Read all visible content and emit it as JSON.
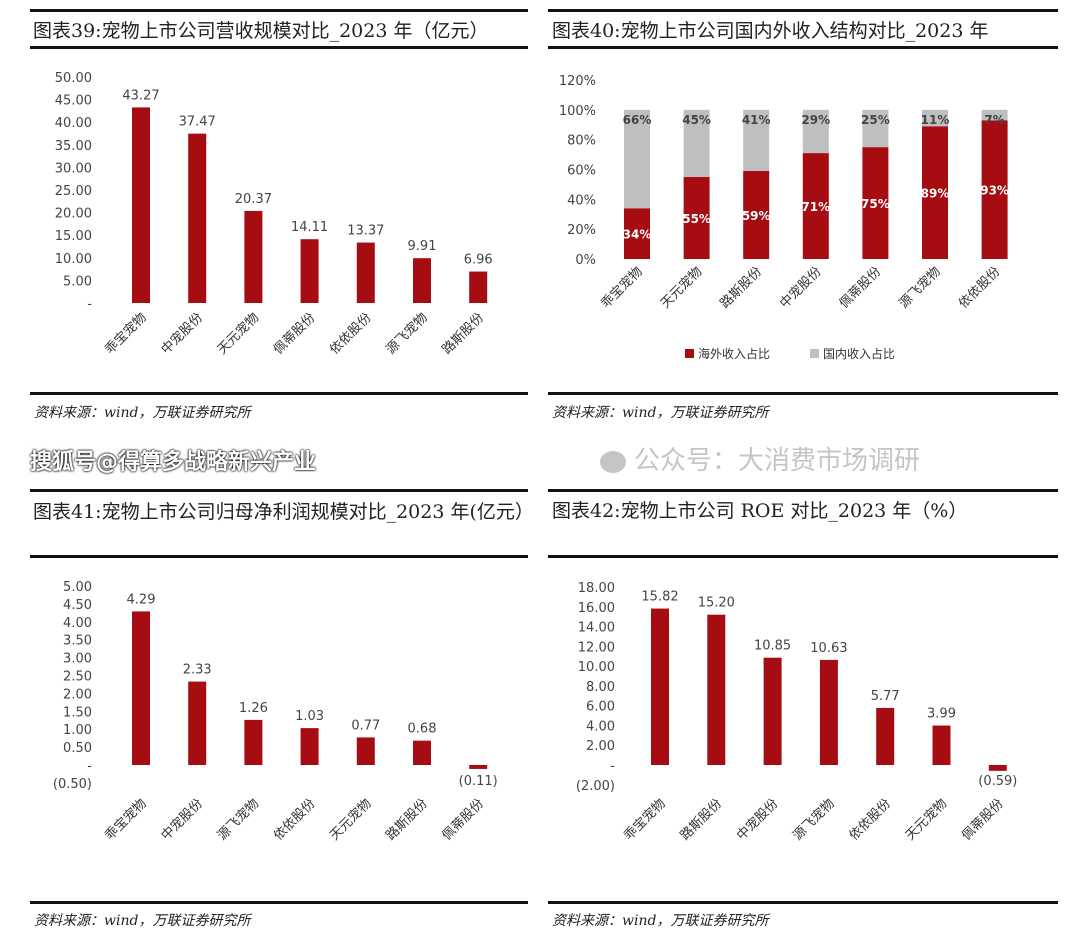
{
  "watermark": "搜狐号@得算多战略新兴产业",
  "watermark2": "公众号：大消费市场调研",
  "chart_data": [
    {
      "type": "bar",
      "title": "图表39:宠物上市公司营收规模对比_2023 年（亿元）",
      "categories": [
        "乖宝宠物",
        "中宠股份",
        "天元宠物",
        "佩蒂股份",
        "依依股份",
        "源飞宠物",
        "路斯股份"
      ],
      "values": [
        43.27,
        37.47,
        20.37,
        14.11,
        13.37,
        9.91,
        6.96
      ],
      "data_labels": [
        "43.27",
        "37.47",
        "20.37",
        "14.11",
        "13.37",
        "9.91",
        "6.96"
      ],
      "yticks": [
        0,
        5,
        10,
        15,
        20,
        25,
        30,
        35,
        40,
        45,
        50
      ],
      "ytick_labels": [
        "-",
        "5.00",
        "10.00",
        "15.00",
        "20.00",
        "25.00",
        "30.00",
        "35.00",
        "40.00",
        "45.00",
        "50.00"
      ],
      "ylim": [
        0,
        50
      ],
      "color": "#a50d12",
      "source": "资料来源：wind，万联证券研究所"
    },
    {
      "type": "bar",
      "stacked": true,
      "title": "图表40:宠物上市公司国内外收入结构对比_2023 年",
      "categories": [
        "乖宝宠物",
        "天元宠物",
        "路斯股份",
        "中宠股份",
        "佩蒂股份",
        "源飞宠物",
        "依依股份"
      ],
      "series": [
        {
          "name": "海外收入占比",
          "values": [
            34,
            55,
            59,
            71,
            75,
            89,
            93
          ],
          "color": "#a50d12"
        },
        {
          "name": "国内收入占比",
          "values": [
            66,
            45,
            41,
            29,
            25,
            11,
            7
          ],
          "color": "#bfbfbf"
        }
      ],
      "yticks": [
        0,
        20,
        40,
        60,
        80,
        100,
        120
      ],
      "ytick_labels": [
        "0%",
        "20%",
        "40%",
        "60%",
        "80%",
        "100%",
        "120%"
      ],
      "ylim": [
        0,
        120
      ],
      "legend": "bottom",
      "source": "资料来源：wind，万联证券研究所"
    },
    {
      "type": "bar",
      "title": "图表41:宠物上市公司归母净利润规模对比_2023 年(亿元）",
      "categories": [
        "乖宝宠物",
        "中宠股份",
        "源飞宠物",
        "依依股份",
        "天元宠物",
        "路斯股份",
        "佩蒂股份"
      ],
      "values": [
        4.29,
        2.33,
        1.26,
        1.03,
        0.77,
        0.68,
        -0.11
      ],
      "data_labels": [
        "4.29",
        "2.33",
        "1.26",
        "1.03",
        "0.77",
        "0.68",
        "(0.11)"
      ],
      "yticks": [
        -0.5,
        0,
        0.5,
        1,
        1.5,
        2,
        2.5,
        3,
        3.5,
        4,
        4.5,
        5
      ],
      "ytick_labels": [
        "(0.50)",
        "-",
        "0.50",
        "1.00",
        "1.50",
        "2.00",
        "2.50",
        "3.00",
        "3.50",
        "4.00",
        "4.50",
        "5.00"
      ],
      "ylim": [
        -0.5,
        5
      ],
      "color": "#a50d12",
      "source": "资料来源：wind，万联证券研究所"
    },
    {
      "type": "bar",
      "title": "图表42:宠物上市公司 ROE 对比_2023 年（%）",
      "categories": [
        "乖宝宠物",
        "路斯股份",
        "中宠股份",
        "源飞宠物",
        "依依股份",
        "天元宠物",
        "佩蒂股份"
      ],
      "values": [
        15.82,
        15.2,
        10.85,
        10.63,
        5.77,
        3.99,
        -0.59
      ],
      "data_labels": [
        "15.82",
        "15.20",
        "10.85",
        "10.63",
        "5.77",
        "3.99",
        "(0.59)"
      ],
      "yticks": [
        -2,
        0,
        2,
        4,
        6,
        8,
        10,
        12,
        14,
        16,
        18
      ],
      "ytick_labels": [
        "(2.00)",
        "-",
        "2.00",
        "4.00",
        "6.00",
        "8.00",
        "10.00",
        "12.00",
        "14.00",
        "16.00",
        "18.00"
      ],
      "ylim": [
        -2,
        18
      ],
      "color": "#a50d12",
      "source": "资料来源：wind，万联证券研究所"
    }
  ]
}
